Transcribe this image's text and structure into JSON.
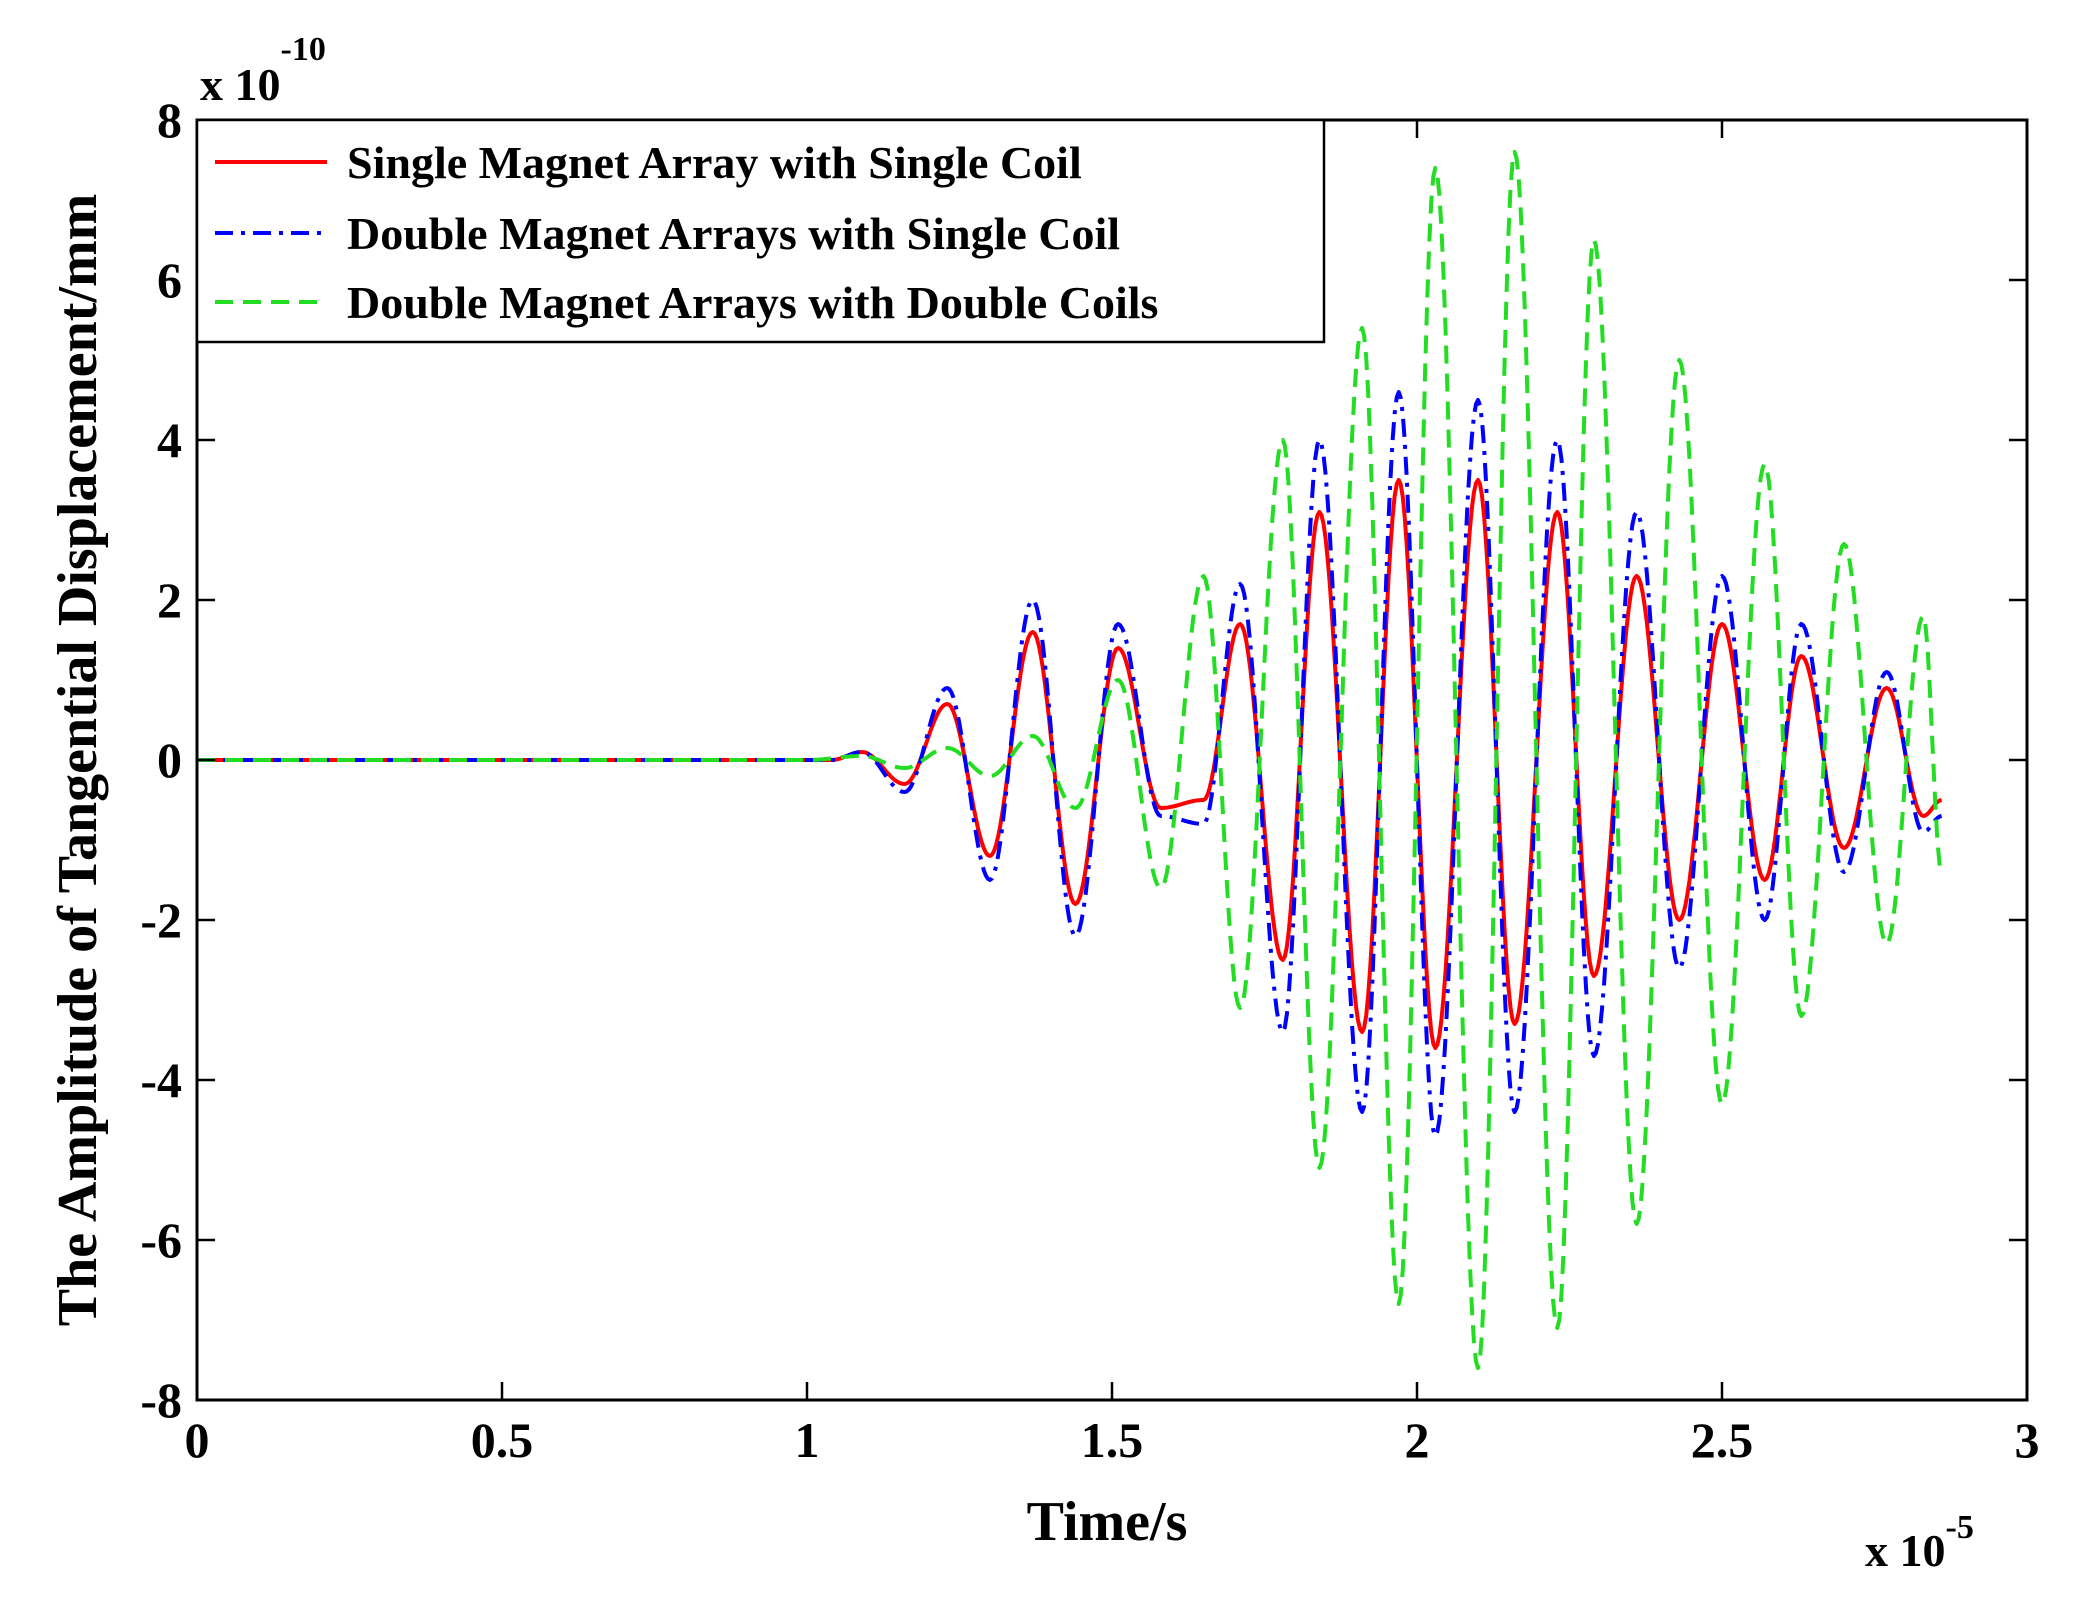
{
  "chart_data": {
    "type": "line",
    "xlabel": "Time/s",
    "ylabel": "The Amplitude of Tangential Displacement/mm",
    "x_multiplier": {
      "base": "x 10",
      "exponent": "-5"
    },
    "y_multiplier": {
      "base": "x 10",
      "exponent": "-10"
    },
    "xlim": [
      0,
      3
    ],
    "ylim": [
      -8,
      8
    ],
    "x_ticks": [
      0,
      0.5,
      1,
      1.5,
      2,
      2.5,
      3
    ],
    "x_tick_labels": [
      "0",
      "0.5",
      "1",
      "1.5",
      "2",
      "2.5",
      "3"
    ],
    "y_ticks": [
      -8,
      -6,
      -4,
      -2,
      0,
      2,
      4,
      6,
      8
    ],
    "y_tick_labels": [
      "-8",
      "-6",
      "-4",
      "-2",
      "0",
      "2",
      "4",
      "6",
      "8"
    ],
    "grid": false,
    "legend_position": "top-left",
    "series": [
      {
        "name": "Single Magnet Array with Single Coil",
        "color": "#ff0000",
        "style": "solid",
        "x": [
          0,
          1.0,
          1.04,
          1.09,
          1.16,
          1.23,
          1.3,
          1.37,
          1.44,
          1.51,
          1.58,
          1.65,
          1.71,
          1.78,
          1.84,
          1.91,
          1.97,
          2.03,
          2.1,
          2.16,
          2.23,
          2.29,
          2.36,
          2.43,
          2.5,
          2.57,
          2.63,
          2.7,
          2.77,
          2.83,
          2.86
        ],
        "y": [
          0,
          0,
          0,
          0.1,
          -0.3,
          0.7,
          -1.2,
          1.6,
          -1.8,
          1.4,
          -0.6,
          -0.5,
          1.7,
          -2.5,
          3.1,
          -3.4,
          3.5,
          -3.6,
          3.5,
          -3.3,
          3.1,
          -2.7,
          2.3,
          -2.0,
          1.7,
          -1.5,
          1.3,
          -1.1,
          0.9,
          -0.7,
          -0.5
        ]
      },
      {
        "name": "Double Magnet Arrays with Single Coil",
        "color": "#0000ff",
        "style": "dash-dot",
        "x": [
          0,
          1.0,
          1.04,
          1.09,
          1.16,
          1.23,
          1.3,
          1.37,
          1.44,
          1.51,
          1.58,
          1.65,
          1.71,
          1.78,
          1.84,
          1.91,
          1.97,
          2.03,
          2.1,
          2.16,
          2.23,
          2.29,
          2.36,
          2.43,
          2.5,
          2.57,
          2.63,
          2.7,
          2.77,
          2.83,
          2.86
        ],
        "y": [
          0,
          0,
          0,
          0.1,
          -0.4,
          0.9,
          -1.5,
          2.0,
          -2.2,
          1.7,
          -0.7,
          -0.8,
          2.2,
          -3.4,
          4.0,
          -4.4,
          4.6,
          -4.7,
          4.5,
          -4.4,
          4.0,
          -3.7,
          3.1,
          -2.6,
          2.3,
          -2.0,
          1.7,
          -1.4,
          1.1,
          -0.9,
          -0.7
        ]
      },
      {
        "name": "Double Magnet Arrays with Double Coils",
        "color": "#22dd22",
        "style": "dashed",
        "x": [
          0,
          1.0,
          1.09,
          1.16,
          1.23,
          1.3,
          1.37,
          1.44,
          1.51,
          1.58,
          1.65,
          1.71,
          1.78,
          1.84,
          1.91,
          1.97,
          2.03,
          2.1,
          2.16,
          2.23,
          2.29,
          2.36,
          2.43,
          2.5,
          2.57,
          2.63,
          2.7,
          2.77,
          2.83,
          2.86
        ],
        "y": [
          0,
          0,
          0.05,
          -0.1,
          0.15,
          -0.2,
          0.3,
          -0.6,
          1.0,
          -1.6,
          2.3,
          -3.1,
          4.0,
          -5.1,
          5.4,
          -6.8,
          7.4,
          -7.6,
          7.6,
          -7.1,
          6.5,
          -5.8,
          5.0,
          -4.3,
          3.7,
          -3.2,
          2.7,
          -2.3,
          1.8,
          -1.4
        ]
      }
    ]
  }
}
